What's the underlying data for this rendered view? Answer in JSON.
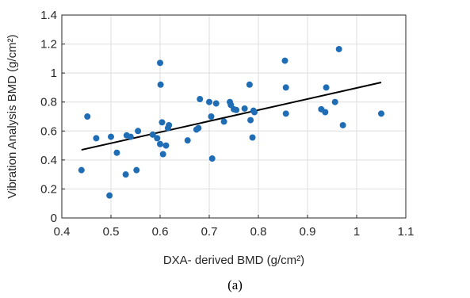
{
  "chart_data": {
    "type": "scatter",
    "title": "",
    "xlabel": "DXA- derived BMD (g/cm²)",
    "ylabel": "Vibration Analysis BMD (g/cm²)",
    "xlim": [
      0.4,
      1.1
    ],
    "ylim": [
      0,
      1.4
    ],
    "xticks": [
      "0.4",
      "0.5",
      "0.6",
      "0.7",
      "0.8",
      "0.9",
      "1",
      "1.1"
    ],
    "yticks": [
      "0",
      "0.2",
      "0.4",
      "0.6",
      "0.8",
      "1",
      "1.2",
      "1.4"
    ],
    "grid": true,
    "point_color": "#1f6db5",
    "line_color": "#000000",
    "series": [
      {
        "values": [
          [
            0.44,
            0.33
          ],
          [
            0.452,
            0.7
          ],
          [
            0.47,
            0.55
          ],
          [
            0.497,
            0.155
          ],
          [
            0.5,
            0.56
          ],
          [
            0.512,
            0.45
          ],
          [
            0.53,
            0.3
          ],
          [
            0.532,
            0.57
          ],
          [
            0.54,
            0.56
          ],
          [
            0.552,
            0.33
          ],
          [
            0.555,
            0.6
          ],
          [
            0.585,
            0.575
          ],
          [
            0.594,
            0.55
          ],
          [
            0.6,
            0.51
          ],
          [
            0.6,
            1.07
          ],
          [
            0.601,
            0.92
          ],
          [
            0.604,
            0.66
          ],
          [
            0.606,
            0.44
          ],
          [
            0.612,
            0.5
          ],
          [
            0.616,
            0.62
          ],
          [
            0.618,
            0.64
          ],
          [
            0.656,
            0.535
          ],
          [
            0.674,
            0.61
          ],
          [
            0.678,
            0.62
          ],
          [
            0.681,
            0.82
          ],
          [
            0.7,
            0.8
          ],
          [
            0.704,
            0.7
          ],
          [
            0.706,
            0.41
          ],
          [
            0.714,
            0.79
          ],
          [
            0.73,
            0.665
          ],
          [
            0.742,
            0.8
          ],
          [
            0.744,
            0.78
          ],
          [
            0.75,
            0.75
          ],
          [
            0.755,
            0.745
          ],
          [
            0.772,
            0.755
          ],
          [
            0.782,
            0.92
          ],
          [
            0.784,
            0.675
          ],
          [
            0.788,
            0.555
          ],
          [
            0.79,
            0.74
          ],
          [
            0.792,
            0.73
          ],
          [
            0.854,
            1.085
          ],
          [
            0.856,
            0.9
          ],
          [
            0.856,
            0.72
          ],
          [
            0.928,
            0.75
          ],
          [
            0.936,
            0.73
          ],
          [
            0.938,
            0.9
          ],
          [
            0.956,
            0.8
          ],
          [
            0.964,
            1.165
          ],
          [
            0.972,
            0.64
          ],
          [
            1.05,
            0.72
          ]
        ]
      }
    ],
    "trendline": {
      "x": [
        0.44,
        1.05
      ],
      "y": [
        0.47,
        0.935
      ]
    }
  },
  "caption": "(a)"
}
